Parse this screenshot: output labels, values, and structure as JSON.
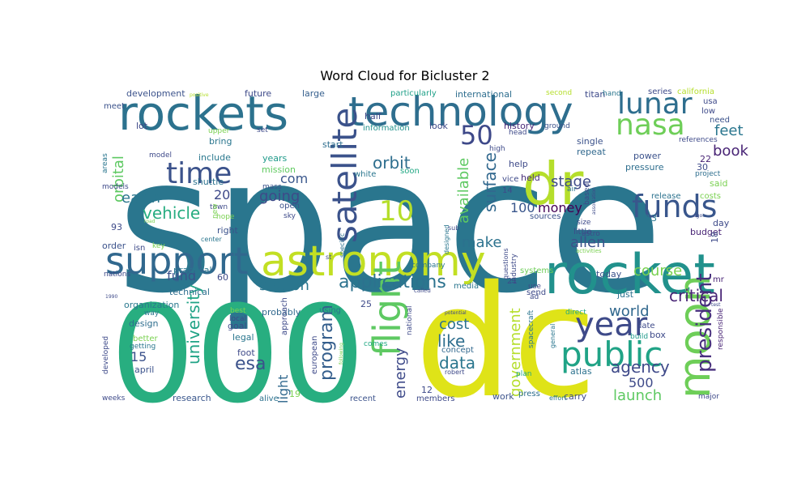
{
  "chart_data": {
    "type": "wordcloud",
    "title": "Word Cloud for Bicluster 2",
    "colormap": "viridis",
    "background": "#ffffff",
    "words": [
      {
        "text": "space",
        "weight": 1.0,
        "color": "#2a768e"
      },
      {
        "text": "dc",
        "weight": 0.85,
        "color": "#dfe318"
      },
      {
        "text": "000",
        "weight": 0.7,
        "color": "#28ae80"
      },
      {
        "text": "rockets",
        "weight": 0.45,
        "color": "#2c728e"
      },
      {
        "text": "technology",
        "weight": 0.42,
        "color": "#2e6e8e"
      },
      {
        "text": "rocket",
        "weight": 0.48,
        "color": "#21918c"
      },
      {
        "text": "astronomy",
        "weight": 0.42,
        "color": "#c2df23"
      },
      {
        "text": "dr",
        "weight": 0.4,
        "color": "#b5de2b"
      },
      {
        "text": "moon",
        "weight": 0.38,
        "color": "#6ece58"
      },
      {
        "text": "flight",
        "weight": 0.35,
        "color": "#5ec962"
      },
      {
        "text": "satellite",
        "weight": 0.35,
        "color": "#3b528b"
      },
      {
        "text": "support",
        "weight": 0.33,
        "color": "#31688e"
      },
      {
        "text": "public",
        "weight": 0.33,
        "color": "#20a386"
      },
      {
        "text": "lunar",
        "weight": 0.3,
        "color": "#2e6e8e"
      },
      {
        "text": "nasa",
        "weight": 0.3,
        "color": "#6ece58"
      },
      {
        "text": "funds",
        "weight": 0.3,
        "color": "#39568c"
      },
      {
        "text": "year",
        "weight": 0.3,
        "color": "#3e4a89"
      },
      {
        "text": "time",
        "weight": 0.27,
        "color": "#3b528b"
      },
      {
        "text": "10",
        "weight": 0.27,
        "color": "#b5de2b"
      },
      {
        "text": "50",
        "weight": 0.25,
        "color": "#3e4989"
      },
      {
        "text": "president",
        "weight": 0.22,
        "color": "#472f7d"
      },
      {
        "text": "applications",
        "weight": 0.2,
        "color": "#2c728e"
      },
      {
        "text": "university",
        "weight": 0.2,
        "color": "#20a386"
      },
      {
        "text": "program",
        "weight": 0.2,
        "color": "#355f8d"
      },
      {
        "text": "government",
        "weight": 0.18,
        "color": "#b5de2b"
      },
      {
        "text": "agency",
        "weight": 0.18,
        "color": "#3e4989"
      },
      {
        "text": "surface",
        "weight": 0.18,
        "color": "#31688e"
      },
      {
        "text": "available",
        "weight": 0.18,
        "color": "#5ec962"
      },
      {
        "text": "orbit",
        "weight": 0.18,
        "color": "#2e6e8e"
      },
      {
        "text": "vehicle",
        "weight": 0.18,
        "color": "#27ad81"
      },
      {
        "text": "orbital",
        "weight": 0.16,
        "color": "#5ec962"
      },
      {
        "text": "critical",
        "weight": 0.18,
        "color": "#482475"
      },
      {
        "text": "world",
        "weight": 0.18,
        "color": "#31688e"
      },
      {
        "text": "cost",
        "weight": 0.18,
        "color": "#2c728e"
      },
      {
        "text": "like",
        "weight": 0.18,
        "color": "#2e6e8e"
      },
      {
        "text": "data",
        "weight": 0.18,
        "color": "#2a768e"
      },
      {
        "text": "esa",
        "weight": 0.18,
        "color": "#3b528b"
      },
      {
        "text": "energy",
        "weight": 0.16,
        "color": "#3e4a89"
      },
      {
        "text": "launch",
        "weight": 0.16,
        "color": "#5ec962"
      },
      {
        "text": "course",
        "weight": 0.16,
        "color": "#7ad151"
      },
      {
        "text": "allen",
        "weight": 0.16,
        "color": "#3b528b"
      },
      {
        "text": "book",
        "weight": 0.16,
        "color": "#482475"
      },
      {
        "text": "feet",
        "weight": 0.16,
        "color": "#2a768e"
      },
      {
        "text": "stage",
        "weight": 0.16,
        "color": "#3e4a89"
      },
      {
        "text": "station",
        "weight": 0.16,
        "color": "#2a768e"
      },
      {
        "text": "going",
        "weight": 0.16,
        "color": "#3e4a89"
      },
      {
        "text": "make",
        "weight": 0.16,
        "color": "#2c728e"
      },
      {
        "text": "earth",
        "weight": 0.16,
        "color": "#2a768e"
      },
      {
        "text": "money",
        "weight": 0.14,
        "color": "#440154"
      },
      {
        "text": "fund",
        "weight": 0.14,
        "color": "#3b528b"
      },
      {
        "text": "light",
        "weight": 0.14,
        "color": "#31688e"
      },
      {
        "text": "500",
        "weight": 0.14,
        "color": "#3e4a89"
      },
      {
        "text": "20",
        "weight": 0.14,
        "color": "#3e4989"
      },
      {
        "text": "100",
        "weight": 0.14,
        "color": "#39568c"
      },
      {
        "text": "com",
        "weight": 0.14,
        "color": "#39568c"
      },
      {
        "text": "15",
        "weight": 0.14,
        "color": "#3b528b"
      },
      {
        "text": "development",
        "weight": 0.1,
        "color": "#3b528b"
      },
      {
        "text": "international",
        "weight": 0.1,
        "color": "#2e6e8e"
      },
      {
        "text": "information",
        "weight": 0.08,
        "color": "#21918c"
      },
      {
        "text": "particularly",
        "weight": 0.08,
        "color": "#1fa088"
      },
      {
        "text": "future",
        "weight": 0.1,
        "color": "#3e4a89"
      },
      {
        "text": "large",
        "weight": 0.1,
        "color": "#355f8d"
      },
      {
        "text": "half",
        "weight": 0.1,
        "color": "#3e4989"
      },
      {
        "text": "technical",
        "weight": 0.1,
        "color": "#2e6e8e"
      },
      {
        "text": "organization",
        "weight": 0.1,
        "color": "#2a788e"
      },
      {
        "text": "practical",
        "weight": 0.1,
        "color": "#2a768e"
      },
      {
        "text": "probably",
        "weight": 0.1,
        "color": "#31688e"
      },
      {
        "text": "research",
        "weight": 0.1,
        "color": "#39568c"
      },
      {
        "text": "design",
        "weight": 0.1,
        "color": "#2e6e8e"
      },
      {
        "text": "legal",
        "weight": 0.1,
        "color": "#2a768e"
      },
      {
        "text": "goal",
        "weight": 0.1,
        "color": "#3e4a89"
      },
      {
        "text": "foot",
        "weight": 0.1,
        "color": "#3e4a89"
      },
      {
        "text": "today",
        "weight": 0.1,
        "color": "#3b528b"
      },
      {
        "text": "just",
        "weight": 0.1,
        "color": "#2c728e"
      },
      {
        "text": "box",
        "weight": 0.1,
        "color": "#3e4a89"
      },
      {
        "text": "atlas",
        "weight": 0.1,
        "color": "#2c728e"
      },
      {
        "text": "carry",
        "weight": 0.1,
        "color": "#3e4a89"
      },
      {
        "text": "members",
        "weight": 0.08,
        "color": "#3e4a89"
      },
      {
        "text": "work",
        "weight": 0.1,
        "color": "#3b528b"
      },
      {
        "text": "day",
        "weight": 0.1,
        "color": "#3e4a89"
      },
      {
        "text": "budget",
        "weight": 0.1,
        "color": "#482475"
      },
      {
        "text": "power",
        "weight": 0.1,
        "color": "#3b528b"
      },
      {
        "text": "pressure",
        "weight": 0.1,
        "color": "#2e6e8e"
      },
      {
        "text": "single",
        "weight": 0.1,
        "color": "#3b528b"
      },
      {
        "text": "repeat",
        "weight": 0.1,
        "color": "#31688e"
      },
      {
        "text": "held",
        "weight": 0.1,
        "color": "#472c7a"
      },
      {
        "text": "help",
        "weight": 0.1,
        "color": "#3e4a89"
      },
      {
        "text": "titan",
        "weight": 0.1,
        "color": "#3e4a89"
      },
      {
        "text": "years",
        "weight": 0.1,
        "color": "#1f9a8a"
      },
      {
        "text": "mission",
        "weight": 0.1,
        "color": "#60ca60"
      },
      {
        "text": "include",
        "weight": 0.1,
        "color": "#2a788e"
      },
      {
        "text": "shuttle",
        "weight": 0.1,
        "color": "#2c728e"
      },
      {
        "text": "bring",
        "weight": 0.1,
        "color": "#2a768e"
      },
      {
        "text": "lot",
        "weight": 0.1,
        "color": "#3e4a89"
      },
      {
        "text": "right",
        "weight": 0.1,
        "color": "#3b528b"
      },
      {
        "text": "order",
        "weight": 0.1,
        "color": "#3b528b"
      },
      {
        "text": "isn",
        "weight": 0.09,
        "color": "#3e4a89"
      },
      {
        "text": "april",
        "weight": 0.09,
        "color": "#3b528b"
      },
      {
        "text": "alive",
        "weight": 0.08,
        "color": "#2c728e"
      },
      {
        "text": "recent",
        "weight": 0.08,
        "color": "#3b528b"
      },
      {
        "text": "press",
        "weight": 0.09,
        "color": "#2e6e8e"
      },
      {
        "text": "start",
        "weight": 0.09,
        "color": "#2e6e8e"
      },
      {
        "text": "look",
        "weight": 0.09,
        "color": "#3e4a89"
      },
      {
        "text": "history",
        "weight": 0.09,
        "color": "#482878"
      },
      {
        "text": "ground",
        "weight": 0.07,
        "color": "#3b528b"
      },
      {
        "text": "head",
        "weight": 0.07,
        "color": "#3e4a89"
      },
      {
        "text": "high",
        "weight": 0.07,
        "color": "#3e4a89"
      },
      {
        "text": "sources",
        "weight": 0.08,
        "color": "#3b528b"
      },
      {
        "text": "little",
        "weight": 0.08,
        "color": "#3e4a89"
      },
      {
        "text": "size",
        "weight": 0.07,
        "color": "#3e4a89"
      },
      {
        "text": "systems",
        "weight": 0.08,
        "color": "#6ece58"
      },
      {
        "text": "send",
        "weight": 0.08,
        "color": "#3e4a89"
      },
      {
        "text": "use",
        "weight": 0.07,
        "color": "#3e4a89"
      },
      {
        "text": "ad",
        "weight": 0.07,
        "color": "#3e4a89"
      },
      {
        "text": "21",
        "weight": 0.08,
        "color": "#3e4a89"
      },
      {
        "text": "media",
        "weight": 0.08,
        "color": "#2a768e"
      },
      {
        "text": "concept",
        "weight": 0.08,
        "color": "#31688e"
      },
      {
        "text": "comes",
        "weight": 0.07,
        "color": "#22a884"
      },
      {
        "text": "plan",
        "weight": 0.07,
        "color": "#22a884"
      },
      {
        "text": "date",
        "weight": 0.08,
        "color": "#3e4a89"
      },
      {
        "text": "build",
        "weight": 0.07,
        "color": "#1f9a8a"
      },
      {
        "text": "direct",
        "weight": 0.07,
        "color": "#22a884"
      },
      {
        "text": "effort",
        "weight": 0.06,
        "color": "#2a768e"
      },
      {
        "text": "major",
        "weight": 0.07,
        "color": "#3e4a89"
      },
      {
        "text": "mr",
        "weight": 0.07,
        "color": "#482475"
      },
      {
        "text": "release",
        "weight": 0.07,
        "color": "#2c728e"
      },
      {
        "text": "costs",
        "weight": 0.07,
        "color": "#7ad151"
      },
      {
        "text": "project",
        "weight": 0.06,
        "color": "#2e6e8e"
      },
      {
        "text": "said",
        "weight": 0.08,
        "color": "#7ad151"
      },
      {
        "text": "need",
        "weight": 0.07,
        "color": "#3b528b"
      },
      {
        "text": "low",
        "weight": 0.07,
        "color": "#3e4a89"
      },
      {
        "text": "usa",
        "weight": 0.07,
        "color": "#3e4a89"
      },
      {
        "text": "series",
        "weight": 0.07,
        "color": "#3e4a89"
      },
      {
        "text": "california",
        "weight": 0.08,
        "color": "#b5de2b"
      },
      {
        "text": "references",
        "weight": 0.06,
        "color": "#3e4a89"
      },
      {
        "text": "second",
        "weight": 0.06,
        "color": "#b5de2b"
      },
      {
        "text": "hand",
        "weight": 0.06,
        "color": "#2a768e"
      },
      {
        "text": "set",
        "weight": 0.06,
        "color": "#3e4a89"
      },
      {
        "text": "upper",
        "weight": 0.06,
        "color": "#7ad151"
      },
      {
        "text": "positive",
        "weight": 0.04,
        "color": "#b5de2b"
      },
      {
        "text": "meet",
        "weight": 0.07,
        "color": "#3b528b"
      },
      {
        "text": "model",
        "weight": 0.06,
        "color": "#3e4a89"
      },
      {
        "text": "areas",
        "weight": 0.05,
        "color": "#2a768e"
      },
      {
        "text": "models",
        "weight": 0.06,
        "color": "#3e4a89"
      },
      {
        "text": "mass",
        "weight": 0.06,
        "color": "#3b528b"
      },
      {
        "text": "white",
        "weight": 0.07,
        "color": "#2a768e"
      },
      {
        "text": "soon",
        "weight": 0.07,
        "color": "#22a884"
      },
      {
        "text": "open",
        "weight": 0.07,
        "color": "#3b528b"
      },
      {
        "text": "sky",
        "weight": 0.06,
        "color": "#3e4a89"
      },
      {
        "text": "town",
        "weight": 0.06,
        "color": "#3e4a89"
      },
      {
        "text": "new",
        "weight": 0.06,
        "color": "#7ad151"
      },
      {
        "text": "hope",
        "weight": 0.06,
        "color": "#7ad151"
      },
      {
        "text": "road",
        "weight": 0.04,
        "color": "#7ad151"
      },
      {
        "text": "center",
        "weight": 0.06,
        "color": "#2a768e"
      },
      {
        "text": "key",
        "weight": 0.06,
        "color": "#7ad151"
      },
      {
        "text": "specific",
        "weight": 0.05,
        "color": "#2c728e"
      },
      {
        "text": "st",
        "weight": 0.05,
        "color": "#3e4a89"
      },
      {
        "text": "designed",
        "weight": 0.05,
        "color": "#2a768e"
      },
      {
        "text": "sub",
        "weight": 0.05,
        "color": "#3e4a89"
      },
      {
        "text": "company",
        "weight": 0.06,
        "color": "#2a768e"
      },
      {
        "text": "called",
        "weight": 0.05,
        "color": "#3e4a89"
      },
      {
        "text": "nations",
        "weight": 0.06,
        "color": "#3e4a89"
      },
      {
        "text": "1990",
        "weight": 0.04,
        "color": "#3e4a89"
      },
      {
        "text": "way",
        "weight": 0.06,
        "color": "#2a768e"
      },
      {
        "text": "best",
        "weight": 0.06,
        "color": "#7ad151"
      },
      {
        "text": "local",
        "weight": 0.06,
        "color": "#3e4a89"
      },
      {
        "text": "approach",
        "weight": 0.07,
        "color": "#3e4a89"
      },
      {
        "text": "using",
        "weight": 0.07,
        "color": "#2a768e"
      },
      {
        "text": "european",
        "weight": 0.06,
        "color": "#3e4a89"
      },
      {
        "text": "following",
        "weight": 0.04,
        "color": "#7ad151"
      },
      {
        "text": "national",
        "weight": 0.06,
        "color": "#3e4a89"
      },
      {
        "text": "potential",
        "weight": 0.04,
        "color": "#3e4a89"
      },
      {
        "text": "robert",
        "weight": 0.05,
        "color": "#3e4a89"
      },
      {
        "text": "general",
        "weight": 0.05,
        "color": "#2a768e"
      },
      {
        "text": "spacecraft",
        "weight": 0.06,
        "color": "#2a768e"
      },
      {
        "text": "questions",
        "weight": 0.06,
        "color": "#3e4a89"
      },
      {
        "text": "industry",
        "weight": 0.06,
        "color": "#3e4a89"
      },
      {
        "text": "vice",
        "weight": 0.07,
        "color": "#3e4a89"
      },
      {
        "text": "air",
        "weight": 0.06,
        "color": "#2c728e"
      },
      {
        "text": "based",
        "weight": 0.06,
        "color": "#3e4a89"
      },
      {
        "text": "astro",
        "weight": 0.06,
        "color": "#3e4a89"
      },
      {
        "text": "association",
        "weight": 0.04,
        "color": "#3e4a89"
      },
      {
        "text": "activities",
        "weight": 0.05,
        "color": "#7ad151"
      },
      {
        "text": "ago",
        "weight": 0.04,
        "color": "#3e4a89"
      },
      {
        "text": "test",
        "weight": 0.04,
        "color": "#3e4a89"
      },
      {
        "text": "responsible",
        "weight": 0.06,
        "color": "#482475"
      },
      {
        "text": "weeks",
        "weight": 0.06,
        "color": "#3e4a89"
      },
      {
        "text": "developed",
        "weight": 0.07,
        "color": "#3e4a89"
      },
      {
        "text": "better",
        "weight": 0.07,
        "color": "#7ad151"
      },
      {
        "text": "getting",
        "weight": 0.07,
        "color": "#2a768e"
      },
      {
        "text": "19",
        "weight": 0.07,
        "color": "#7ad151"
      },
      {
        "text": "12",
        "weight": 0.07,
        "color": "#3e4a89"
      },
      {
        "text": "13",
        "weight": 0.07,
        "color": "#2a768e"
      },
      {
        "text": "14",
        "weight": 0.07,
        "color": "#3e4a89"
      },
      {
        "text": "18",
        "weight": 0.07,
        "color": "#3e4a89"
      },
      {
        "text": "22",
        "weight": 0.07,
        "color": "#482475"
      },
      {
        "text": "25",
        "weight": 0.07,
        "color": "#3e4a89"
      },
      {
        "text": "30",
        "weight": 0.07,
        "color": "#3e4a89"
      },
      {
        "text": "60",
        "weight": 0.07,
        "color": "#3e4a89"
      },
      {
        "text": "93",
        "weight": 0.07,
        "color": "#3e4a89"
      }
    ]
  }
}
